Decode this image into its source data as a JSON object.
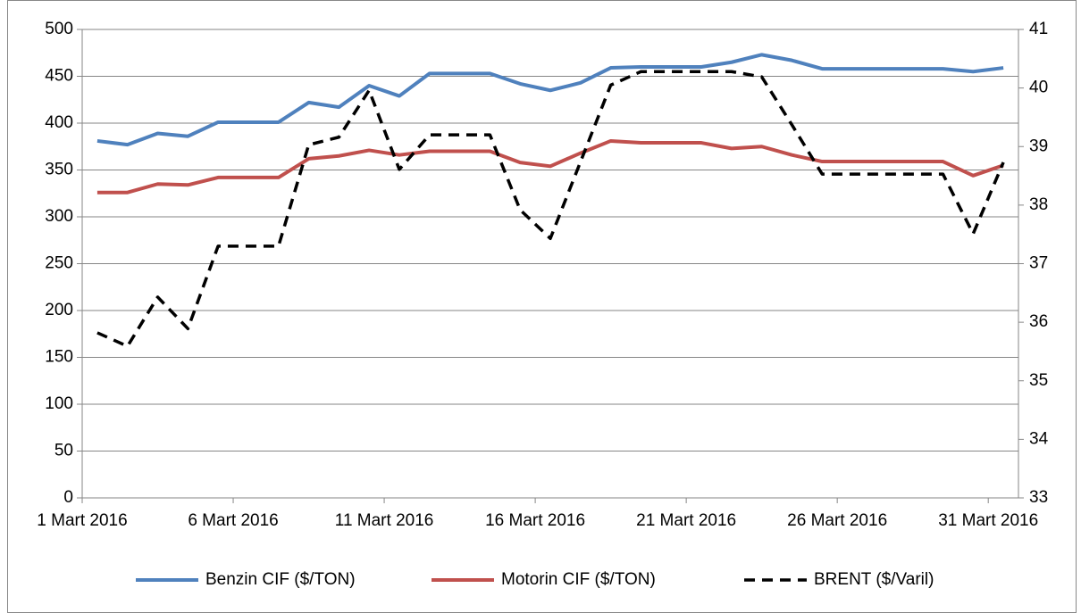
{
  "chart_data": {
    "type": "line",
    "categories": [
      "1 Mart 2016",
      null,
      null,
      null,
      null,
      "6 Mart 2016",
      null,
      null,
      null,
      null,
      "11 Mart 2016",
      null,
      null,
      null,
      null,
      "16 Mart 2016",
      null,
      null,
      null,
      null,
      "21 Mart 2016",
      null,
      null,
      null,
      null,
      "26 Mart 2016",
      null,
      null,
      null,
      null,
      "31 Mart 2016"
    ],
    "series": [
      {
        "name": "Benzin CIF ($/TON)",
        "color": "#4f81bd",
        "dash": false,
        "values": [
          381,
          377,
          389,
          386,
          401,
          401,
          401,
          422,
          417,
          440,
          429,
          453,
          453,
          453,
          442,
          435,
          443,
          459,
          460,
          460,
          460,
          465,
          473,
          467,
          458,
          458,
          458,
          458,
          458,
          455,
          459
        ]
      },
      {
        "name": "Motorin CIF ($/TON)",
        "color": "#c0504d",
        "dash": false,
        "values": [
          326,
          326,
          335,
          334,
          342,
          342,
          342,
          362,
          365,
          371,
          366,
          370,
          370,
          370,
          358,
          354,
          368,
          381,
          379,
          379,
          379,
          373,
          375,
          366,
          359,
          359,
          359,
          359,
          359,
          344,
          355
        ]
      },
      {
        "name": "BRENT ($/Varil)",
        "color": "#000000",
        "dash": true,
        "axis": "y2",
        "values": [
          35.82,
          35.59,
          36.43,
          35.89,
          37.3,
          37.3,
          37.3,
          39.03,
          39.16,
          39.96,
          38.61,
          39.2,
          39.2,
          39.2,
          37.92,
          37.43,
          38.74,
          40.05,
          40.28,
          40.28,
          40.28,
          40.28,
          40.19,
          39.37,
          38.53,
          38.53,
          38.53,
          38.53,
          38.53,
          37.51,
          38.73
        ]
      }
    ],
    "ylim": [
      0,
      500
    ],
    "yticks": [
      0,
      50,
      100,
      150,
      200,
      250,
      300,
      350,
      400,
      450,
      500
    ],
    "y2lim": [
      33,
      41
    ],
    "y2ticks": [
      33,
      34,
      35,
      36,
      37,
      38,
      39,
      40,
      41
    ],
    "grid": true,
    "legend": "bottom"
  }
}
